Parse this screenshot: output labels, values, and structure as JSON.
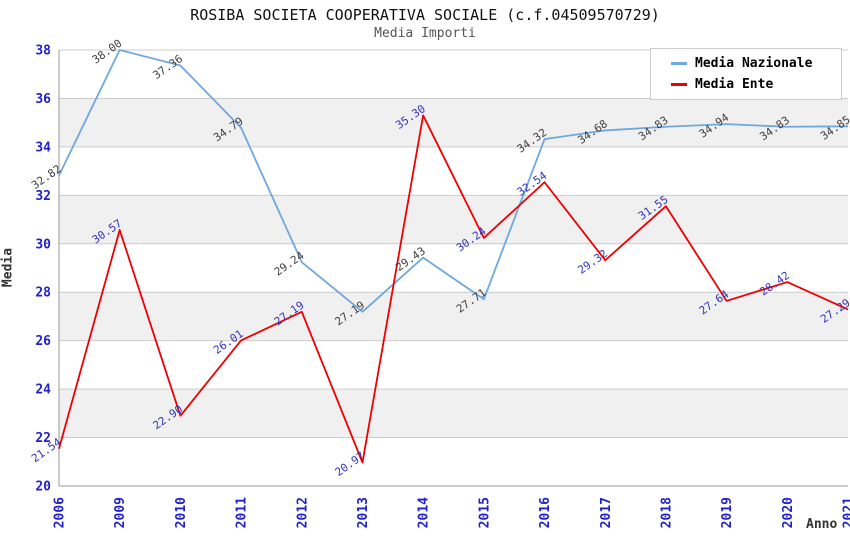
{
  "title": "ROSIBA SOCIETA COOPERATIVA SOCIALE (c.f.04509570729)",
  "subtitle": "Media Importi",
  "chart_data": {
    "type": "line",
    "title": "ROSIBA SOCIETA COOPERATIVA SOCIALE (c.f.04509570729)",
    "subtitle": "Media Importi",
    "xlabel": "Anno",
    "ylabel": "Media",
    "x": [
      "2006",
      "2009",
      "2010",
      "2011",
      "2012",
      "2013",
      "2014",
      "2015",
      "2016",
      "2017",
      "2018",
      "2019",
      "2020",
      "2021"
    ],
    "series": [
      {
        "name": "Media Nazionale",
        "color": "#6FA8DC",
        "label_color": "#404040",
        "values": [
          32.82,
          38.0,
          37.36,
          34.79,
          29.24,
          27.19,
          29.43,
          27.71,
          34.32,
          34.68,
          34.83,
          34.94,
          34.83,
          34.85
        ]
      },
      {
        "name": "Media Ente",
        "color": "#EE0000",
        "label_color": "#3333BB",
        "values": [
          21.54,
          30.57,
          22.9,
          26.01,
          27.19,
          20.97,
          35.3,
          30.24,
          32.54,
          29.32,
          31.55,
          27.64,
          28.42,
          27.29
        ]
      }
    ],
    "ylim": [
      20,
      38
    ],
    "ytick_step": 2,
    "grid": true,
    "legend_position": "top-right",
    "plot_bands_alternating": true
  },
  "colors": {
    "tick_label": "#2121C8",
    "band_gray": "#F0F0F0",
    "band_white": "#FFFFFF",
    "grid_line": "#CCCCCC",
    "axis_line": "#999999",
    "title_text": "#111111",
    "subtitle_text": "#555555",
    "axis_title_text": "#333333"
  }
}
